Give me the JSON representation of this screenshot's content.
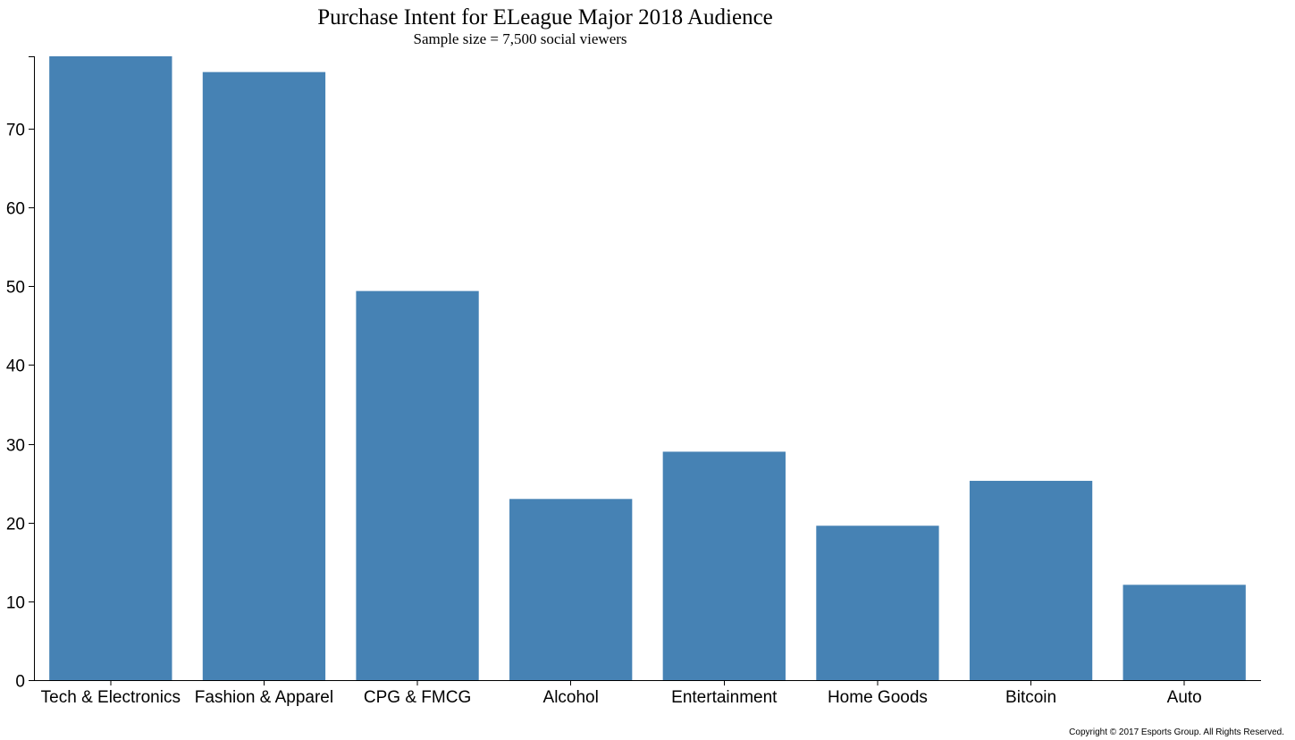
{
  "chart_data": {
    "type": "bar",
    "title": "Purchase Intent for ELeague Major 2018 Audience",
    "subtitle": "Sample size = 7,500 social viewers",
    "categories": [
      "Tech & Electronics",
      "Fashion & Apparel",
      "CPG & FMCG",
      "Alcohol",
      "Entertainment",
      "Home Goods",
      "Bitcoin",
      "Auto"
    ],
    "values": [
      79.2,
      77.2,
      49.4,
      23.0,
      29.0,
      19.6,
      25.3,
      12.1
    ],
    "ylim": [
      0,
      79.2
    ],
    "yticks": [
      0,
      10,
      20,
      30,
      40,
      50,
      60,
      70
    ],
    "xlabel": "",
    "ylabel": "",
    "grid": false,
    "bar_color": "#4682b4"
  },
  "footer": {
    "copyright": "Copyright © 2017 Esports Group. All Rights Reserved."
  }
}
